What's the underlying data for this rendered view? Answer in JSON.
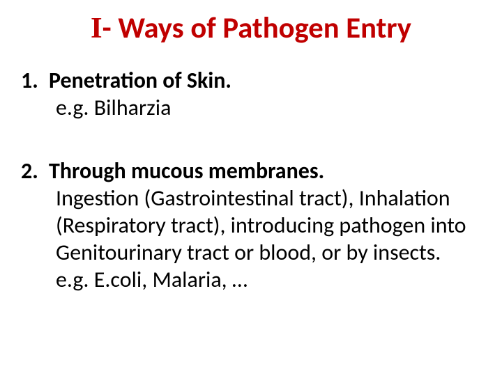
{
  "title": {
    "roman_prefix": "I",
    "text": "- Ways of Pathogen Entry",
    "color": "#c00000",
    "fontsize_pt": 32,
    "font_weight": 700
  },
  "body": {
    "color": "#000000",
    "fontsize_pt": 24,
    "items": [
      {
        "number": "1.",
        "heading": "Penetration of Skin.",
        "lines": [
          "e.g. Bilharzia"
        ]
      },
      {
        "number": "2.",
        "heading": "Through mucous membranes.",
        "lines": [
          "Ingestion (Gastrointestinal tract), Inhalation",
          "(Respiratory tract), introducing pathogen into",
          "Genitourinary tract or blood, or by insects.",
          " e.g. E.coli, Malaria, …"
        ]
      }
    ]
  },
  "background_color": "#ffffff"
}
